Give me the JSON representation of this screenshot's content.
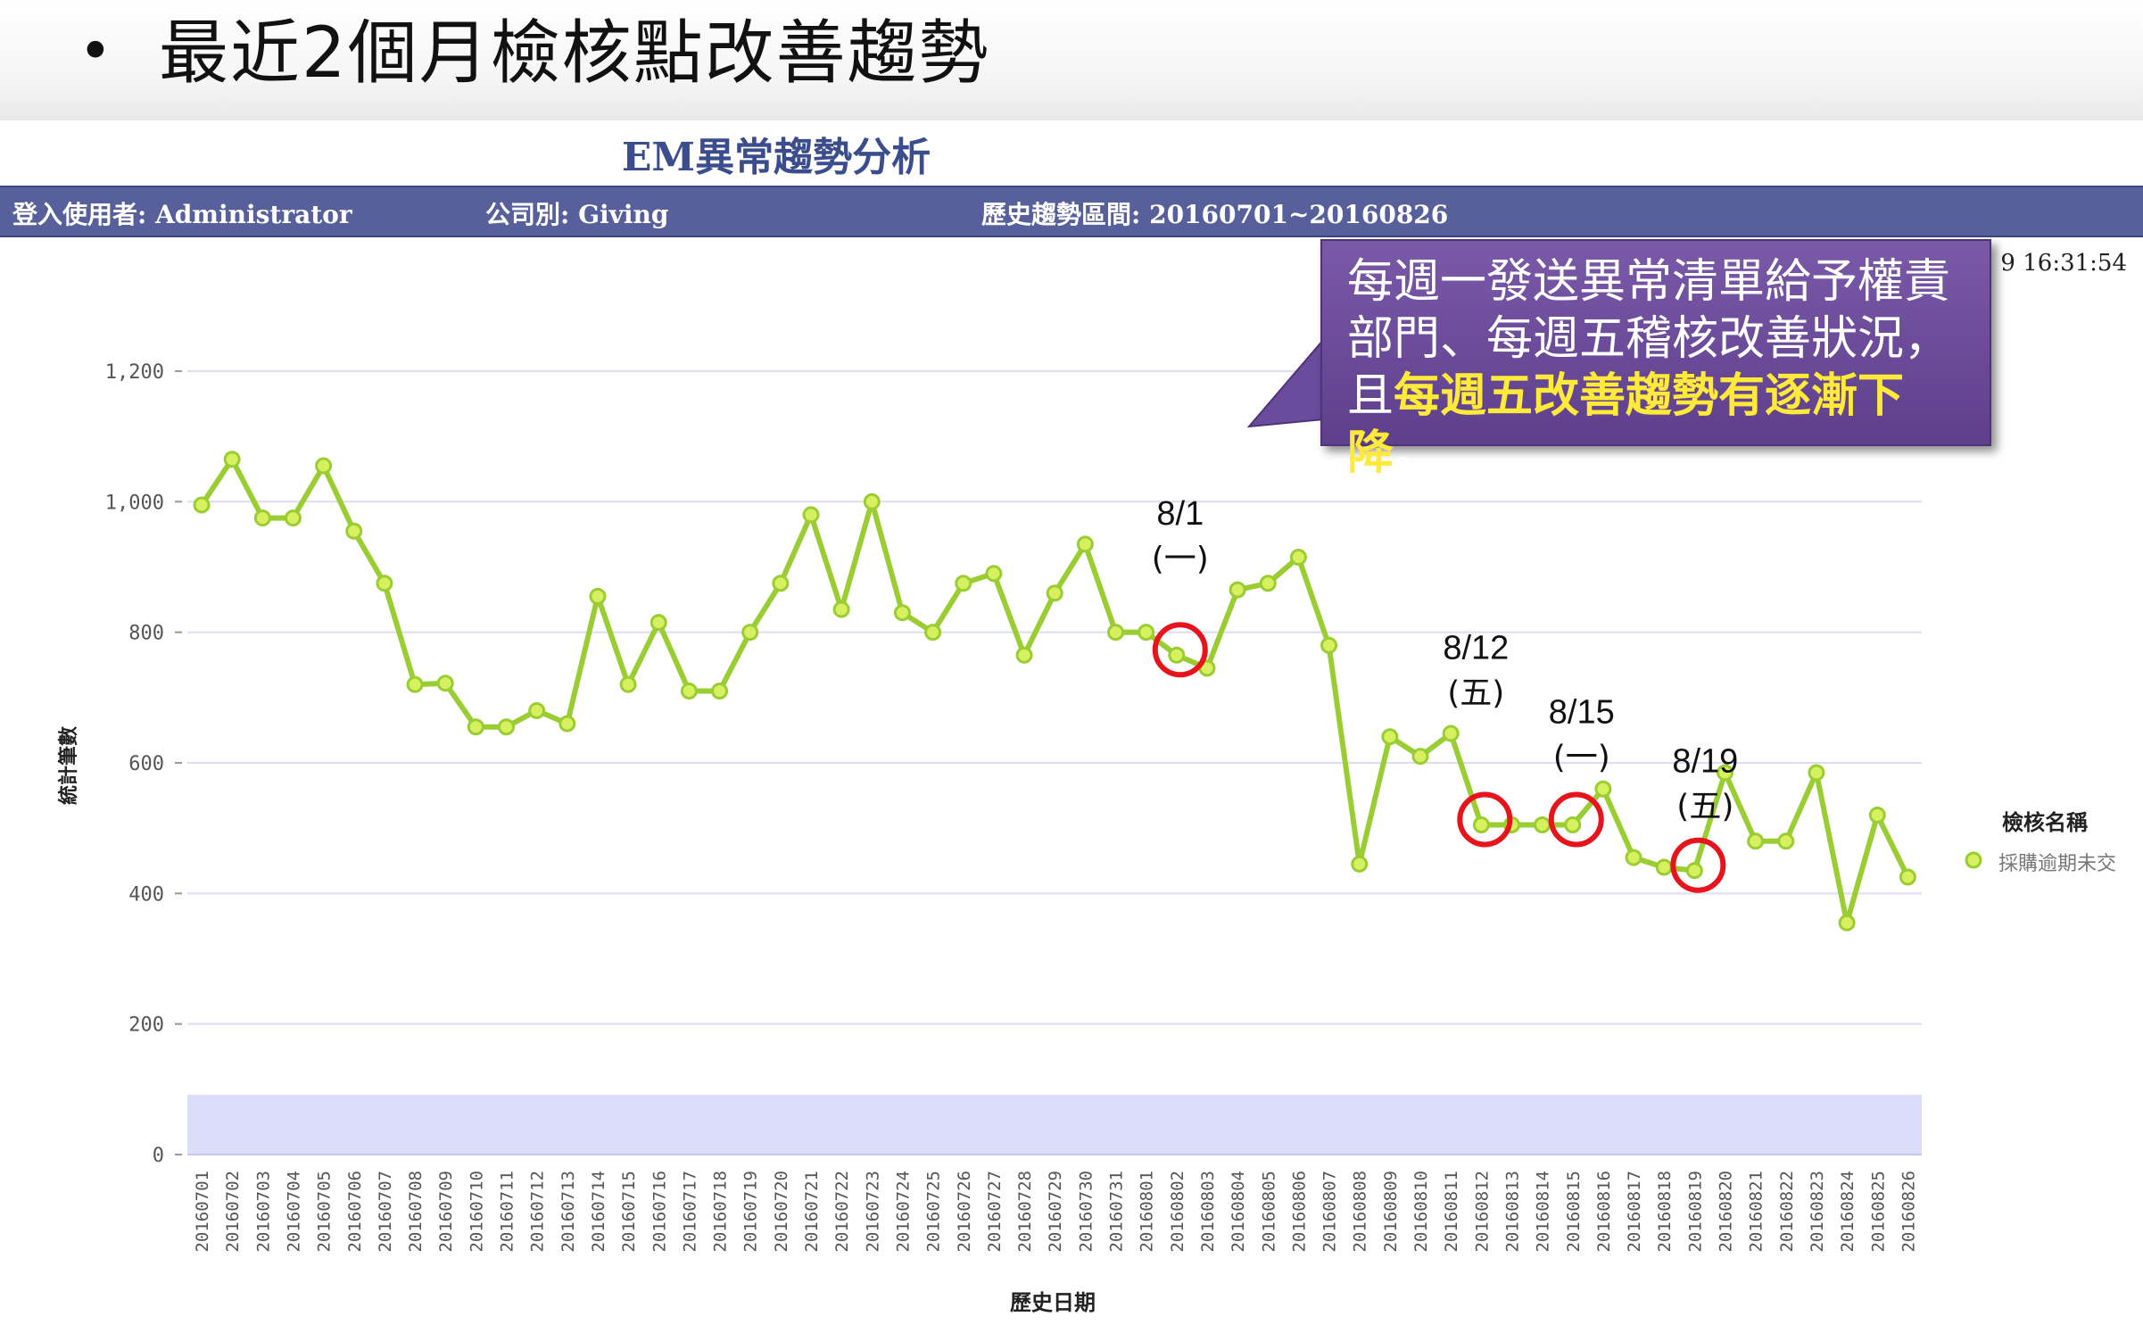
{
  "slide": {
    "bullet": "•",
    "title": "最近2個月檢核點改善趨勢"
  },
  "report": {
    "title": "EM異常趨勢分析",
    "login_user": "登入使用者: Administrator",
    "company": "公司別: Giving",
    "range": "歷史趨勢區間: 20160701~20160826",
    "timestamp": "9 16:31:54"
  },
  "callout": {
    "line1": "每週一發送異常清單給予權責",
    "line2": "部門、每週五稽核改善狀況，",
    "line3_prefix": "且",
    "line3_highlight": "每週五改善趨勢有逐漸下降",
    "line3_suffix": "。"
  },
  "legend": {
    "title": "檢核名稱",
    "series_label": "採購逾期未交"
  },
  "colors": {
    "series": "#9acd32",
    "marker": "#d7f060",
    "info_bar": "#57609a",
    "callout": "#6a4c9c",
    "highlight_text": "#ffea3a",
    "circle": "#e8141c"
  },
  "annotations": [
    {
      "date": "20160802",
      "label1": "8/1",
      "label2": "(一)"
    },
    {
      "date": "20160812",
      "label1": "8/12",
      "label2": "(五)"
    },
    {
      "date": "20160815",
      "label1": "8/15",
      "label2": "(一)"
    },
    {
      "date": "20160819",
      "label1": "8/19",
      "label2": "(五)"
    }
  ],
  "chart_data": {
    "type": "line",
    "title": "",
    "xlabel": "歷史日期",
    "ylabel": "統計筆數",
    "ylim": [
      0,
      1200
    ],
    "yticks": [
      0,
      200,
      400,
      600,
      800,
      1000,
      1200
    ],
    "ytick_labels": [
      "0",
      "200",
      "400",
      "600",
      "800",
      "1,000",
      "1,200"
    ],
    "grid": true,
    "legend_position": "right",
    "x": [
      "20160701",
      "20160702",
      "20160703",
      "20160704",
      "20160705",
      "20160706",
      "20160707",
      "20160708",
      "20160709",
      "20160710",
      "20160711",
      "20160712",
      "20160713",
      "20160714",
      "20160715",
      "20160716",
      "20160717",
      "20160718",
      "20160719",
      "20160720",
      "20160721",
      "20160722",
      "20160723",
      "20160724",
      "20160725",
      "20160726",
      "20160727",
      "20160728",
      "20160729",
      "20160730",
      "20160731",
      "20160801",
      "20160802",
      "20160803",
      "20160804",
      "20160805",
      "20160806",
      "20160807",
      "20160808",
      "20160809",
      "20160810",
      "20160811",
      "20160812",
      "20160813",
      "20160814",
      "20160815",
      "20160816",
      "20160817",
      "20160818",
      "20160819",
      "20160820",
      "20160821",
      "20160822",
      "20160823",
      "20160824",
      "20160825",
      "20160826"
    ],
    "series": [
      {
        "name": "採購逾期未交",
        "values": [
          995,
          1065,
          975,
          975,
          1055,
          955,
          875,
          720,
          722,
          655,
          655,
          680,
          660,
          855,
          720,
          815,
          710,
          710,
          800,
          875,
          980,
          835,
          1000,
          830,
          800,
          875,
          890,
          765,
          860,
          935,
          800,
          800,
          765,
          745,
          865,
          875,
          915,
          780,
          445,
          640,
          610,
          645,
          505,
          505,
          505,
          505,
          560,
          455,
          440,
          435,
          585,
          480,
          480,
          585,
          355,
          520,
          425
        ]
      }
    ]
  }
}
